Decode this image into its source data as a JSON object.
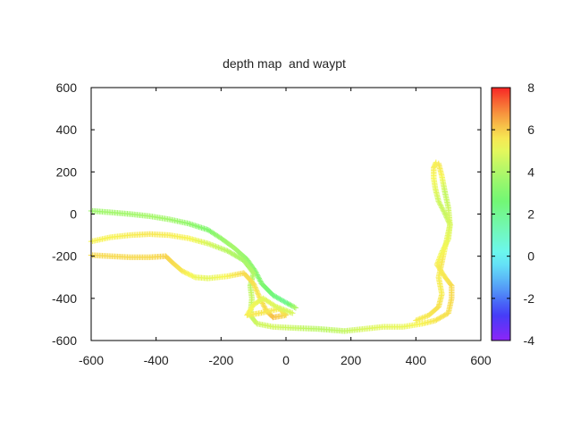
{
  "chart_data": {
    "type": "scatter",
    "title": "depth map  and waypt",
    "xlabel": "",
    "ylabel": "",
    "xlim": [
      -600,
      600
    ],
    "ylim": [
      -600,
      600
    ],
    "x_ticks": [
      -600,
      -400,
      -200,
      0,
      200,
      400,
      600
    ],
    "y_ticks": [
      -600,
      -400,
      -200,
      0,
      200,
      400,
      600
    ],
    "colorbar": {
      "range": [
        -4,
        8
      ],
      "ticks": [
        -4,
        -2,
        0,
        2,
        4,
        6,
        8
      ],
      "palette": "rainbow"
    },
    "grid": false,
    "legend": "none",
    "marker": "plus",
    "series": [
      {
        "points": [
          [
            -600,
            15,
            3.6
          ],
          [
            -540,
            8,
            3.7
          ],
          [
            -480,
            0,
            3.7
          ],
          [
            -420,
            -10,
            3.8
          ],
          [
            -360,
            -25,
            3.7
          ],
          [
            -300,
            -45,
            3.4
          ],
          [
            -240,
            -75,
            3.0
          ],
          [
            -200,
            -115,
            3.5
          ],
          [
            -160,
            -160,
            3.8
          ],
          [
            -120,
            -215,
            3.4
          ],
          [
            -95,
            -270,
            3.2
          ],
          [
            -75,
            -330,
            3.0
          ],
          [
            -40,
            -385,
            2.5
          ],
          [
            0,
            -420,
            2.0
          ],
          [
            30,
            -445,
            4.0
          ]
        ]
      },
      {
        "points": [
          [
            -600,
            -130,
            5.4
          ],
          [
            -540,
            -110,
            5.4
          ],
          [
            -480,
            -100,
            5.5
          ],
          [
            -420,
            -95,
            5.6
          ],
          [
            -360,
            -100,
            5.5
          ],
          [
            -300,
            -115,
            5.4
          ],
          [
            -240,
            -140,
            4.8
          ],
          [
            -180,
            -175,
            4.2
          ],
          [
            -130,
            -220,
            3.8
          ],
          [
            -100,
            -280,
            4.0
          ],
          [
            -110,
            -340,
            4.2
          ],
          [
            -105,
            -400,
            4.5
          ],
          [
            -110,
            -480,
            4.4
          ],
          [
            -90,
            -520,
            4.6
          ],
          [
            -40,
            -535,
            4.7
          ],
          [
            20,
            -540,
            4.5
          ],
          [
            100,
            -545,
            4.2
          ],
          [
            180,
            -555,
            4.4
          ],
          [
            240,
            -545,
            4.8
          ],
          [
            300,
            -535,
            5.0
          ],
          [
            360,
            -535,
            5.1
          ],
          [
            420,
            -520,
            5.4
          ],
          [
            460,
            -505,
            5.6
          ],
          [
            500,
            -470,
            5.7
          ],
          [
            510,
            -400,
            5.8
          ],
          [
            510,
            -340,
            5.8
          ],
          [
            490,
            -300,
            5.6
          ],
          [
            465,
            -240,
            5.5
          ],
          [
            480,
            -180,
            5.2
          ],
          [
            500,
            -120,
            5.0
          ],
          [
            505,
            -50,
            4.7
          ],
          [
            490,
            0,
            4.5
          ],
          [
            470,
            60,
            4.6
          ],
          [
            460,
            120,
            5.0
          ],
          [
            455,
            170,
            5.3
          ],
          [
            455,
            220,
            5.5
          ],
          [
            462,
            245,
            5.4
          ]
        ]
      },
      {
        "points": [
          [
            -600,
            -195,
            5.8
          ],
          [
            -540,
            -200,
            5.8
          ],
          [
            -480,
            -205,
            5.8
          ],
          [
            -420,
            -205,
            5.8
          ],
          [
            -370,
            -200,
            5.9
          ],
          [
            -350,
            -230,
            5.8
          ],
          [
            -320,
            -270,
            5.6
          ],
          [
            -280,
            -300,
            5.2
          ],
          [
            -240,
            -305,
            5.0
          ],
          [
            -180,
            -295,
            5.4
          ],
          [
            -130,
            -280,
            5.8
          ],
          [
            -100,
            -330,
            5.7
          ],
          [
            -80,
            -400,
            5.6
          ],
          [
            -60,
            -460,
            5.8
          ],
          [
            -40,
            -490,
            6.2
          ],
          [
            0,
            -480,
            5.8
          ],
          [
            -20,
            -450,
            5.5
          ],
          [
            -80,
            -470,
            5.6
          ],
          [
            -120,
            -480,
            5.5
          ],
          [
            -100,
            -430,
            5.2
          ],
          [
            -70,
            -400,
            5.0
          ],
          [
            -30,
            -440,
            4.9
          ],
          [
            20,
            -470,
            4.8
          ]
        ]
      },
      {
        "points": [
          [
            470,
            240,
            5.6
          ],
          [
            480,
            180,
            5.4
          ],
          [
            490,
            100,
            4.4
          ],
          [
            500,
            30,
            4.6
          ],
          [
            505,
            -50,
            4.8
          ],
          [
            480,
            -230,
            5.6
          ],
          [
            470,
            -300,
            5.5
          ],
          [
            480,
            -380,
            5.5
          ],
          [
            470,
            -440,
            5.7
          ],
          [
            440,
            -480,
            5.6
          ],
          [
            400,
            -505,
            5.5
          ]
        ]
      }
    ]
  }
}
